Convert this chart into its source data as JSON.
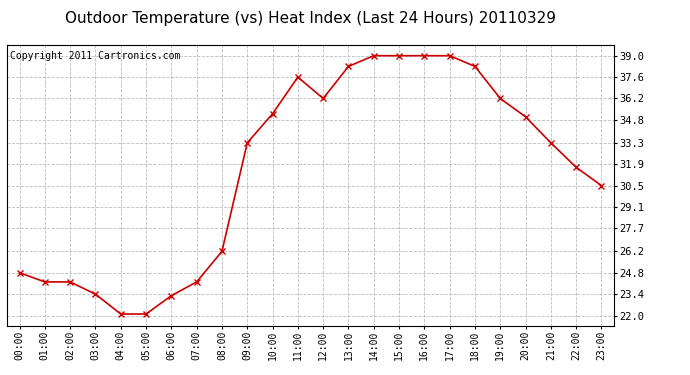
{
  "title": "Outdoor Temperature (vs) Heat Index (Last 24 Hours) 20110329",
  "copyright": "Copyright 2011 Cartronics.com",
  "x_labels": [
    "00:00",
    "01:00",
    "02:00",
    "03:00",
    "04:00",
    "05:00",
    "06:00",
    "07:00",
    "08:00",
    "09:00",
    "10:00",
    "11:00",
    "12:00",
    "13:00",
    "14:00",
    "15:00",
    "16:00",
    "17:00",
    "18:00",
    "19:00",
    "20:00",
    "21:00",
    "22:00",
    "23:00"
  ],
  "y_values": [
    24.8,
    24.2,
    24.2,
    23.4,
    22.1,
    22.1,
    23.3,
    24.2,
    26.2,
    33.3,
    35.2,
    37.6,
    36.2,
    38.3,
    39.0,
    39.0,
    39.0,
    39.0,
    38.3,
    36.2,
    35.0,
    33.3,
    31.7,
    30.5
  ],
  "line_color": "#cc0000",
  "marker": "x",
  "marker_color": "#cc0000",
  "background_color": "#ffffff",
  "plot_bg_color": "#ffffff",
  "grid_color": "#bbbbbb",
  "y_ticks": [
    22.0,
    23.4,
    24.8,
    26.2,
    27.7,
    29.1,
    30.5,
    31.9,
    33.3,
    34.8,
    36.2,
    37.6,
    39.0
  ],
  "ylim": [
    21.3,
    39.7
  ],
  "xlim": [
    -0.5,
    23.5
  ],
  "title_fontsize": 11,
  "copyright_fontsize": 7,
  "tick_fontsize": 7,
  "ytick_fontsize": 7.5
}
